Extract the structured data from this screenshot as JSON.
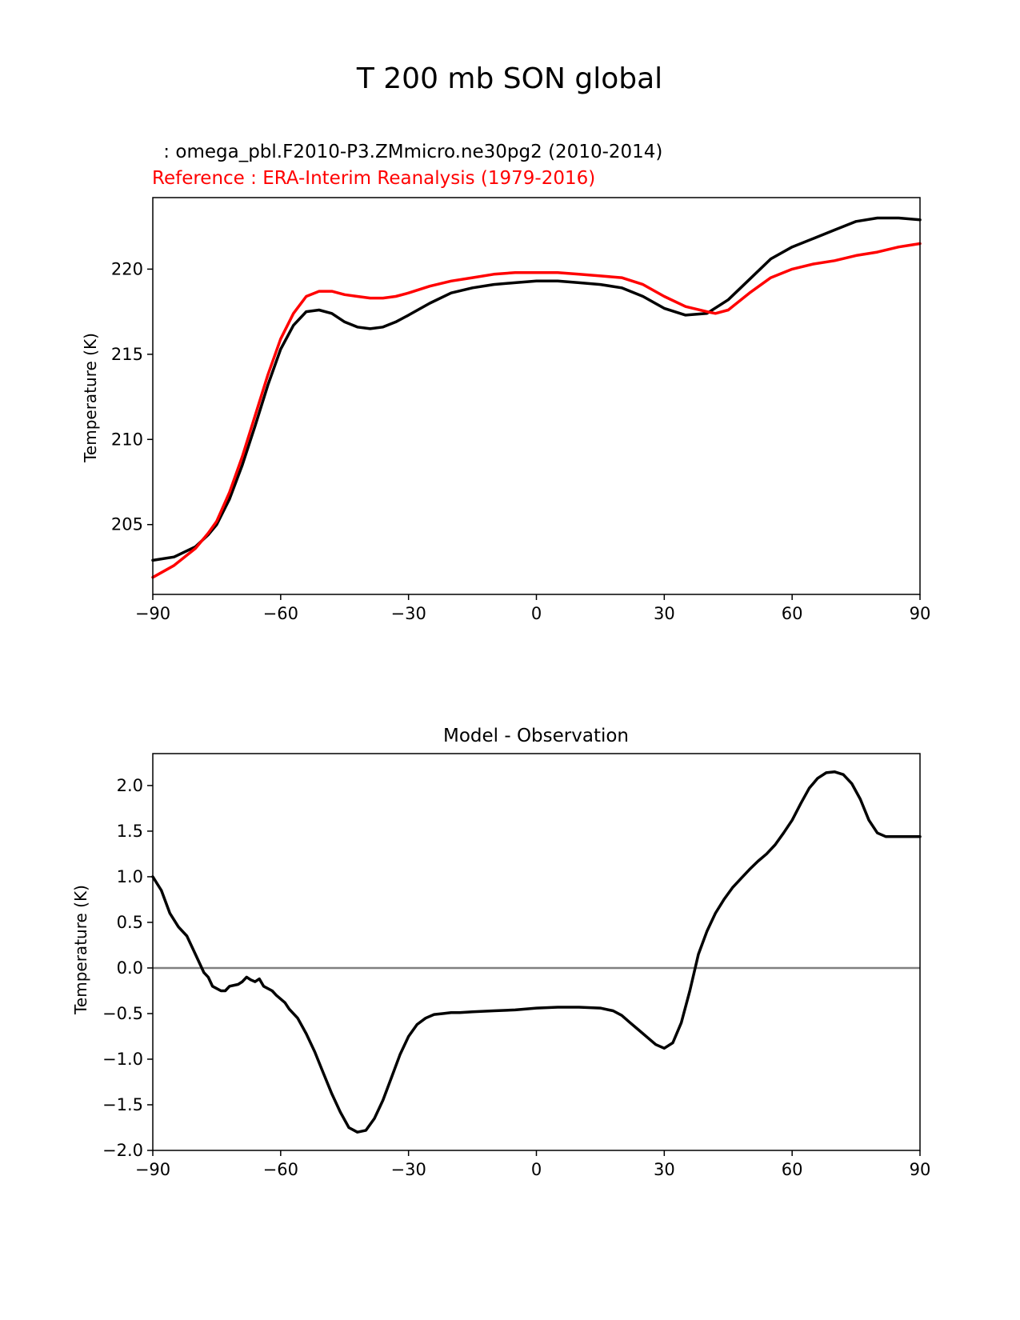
{
  "figure": {
    "title": "T 200 mb SON global"
  },
  "chart_data": [
    {
      "type": "line",
      "test_label": " : omega_pbl.F2010-P3.ZMmicro.ne30pg2 (2010-2014)",
      "reference_label": "Reference : ERA-Interim Reanalysis (1979-2016)",
      "title": "",
      "xlabel": "",
      "ylabel": "Temperature (K)",
      "xlim": [
        -90,
        90
      ],
      "ylim": [
        200.9,
        224.2
      ],
      "xticks": [
        -90,
        -60,
        -30,
        0,
        30,
        60,
        90
      ],
      "xtick_labels": [
        "−90",
        "−60",
        "−30",
        "0",
        "30",
        "60",
        "90"
      ],
      "yticks": [
        205,
        210,
        215,
        220
      ],
      "ytick_labels": [
        "205",
        "210",
        "215",
        "220"
      ],
      "grid": false,
      "series": [
        {
          "color": "#000000",
          "x": [
            -90,
            -85,
            -80,
            -77,
            -75,
            -72,
            -69,
            -66,
            -63,
            -60,
            -57,
            -54,
            -51,
            -48,
            -45,
            -42,
            -39,
            -36,
            -33,
            -30,
            -25,
            -20,
            -15,
            -10,
            -5,
            0,
            5,
            10,
            15,
            20,
            25,
            30,
            35,
            40,
            45,
            50,
            55,
            60,
            65,
            70,
            75,
            80,
            85,
            90
          ],
          "y": [
            202.9,
            203.1,
            203.7,
            204.4,
            205.0,
            206.5,
            208.5,
            210.8,
            213.2,
            215.3,
            216.7,
            217.5,
            217.6,
            217.4,
            216.9,
            216.6,
            216.5,
            216.6,
            216.9,
            217.3,
            218.0,
            218.6,
            218.9,
            219.1,
            219.2,
            219.3,
            219.3,
            219.2,
            219.1,
            218.9,
            218.4,
            217.7,
            217.3,
            217.4,
            218.2,
            219.4,
            220.6,
            221.3,
            221.8,
            222.3,
            222.8,
            223.0,
            223.0,
            222.9
          ]
        },
        {
          "color": "#ff0000",
          "x": [
            -90,
            -85,
            -80,
            -77,
            -75,
            -72,
            -69,
            -66,
            -63,
            -60,
            -57,
            -54,
            -51,
            -48,
            -45,
            -42,
            -39,
            -36,
            -33,
            -30,
            -25,
            -20,
            -15,
            -10,
            -5,
            0,
            5,
            10,
            15,
            20,
            25,
            30,
            35,
            40,
            42,
            45,
            50,
            55,
            60,
            65,
            70,
            75,
            80,
            85,
            90
          ],
          "y": [
            201.9,
            202.6,
            203.6,
            204.5,
            205.2,
            206.9,
            209.0,
            211.4,
            213.8,
            215.9,
            217.4,
            218.4,
            218.7,
            218.7,
            218.5,
            218.4,
            218.3,
            218.3,
            218.4,
            218.6,
            219.0,
            219.3,
            219.5,
            219.7,
            219.8,
            219.8,
            219.8,
            219.7,
            219.6,
            219.5,
            219.1,
            218.4,
            217.8,
            217.5,
            217.4,
            217.6,
            218.6,
            219.5,
            220.0,
            220.3,
            220.5,
            220.8,
            221.0,
            221.3,
            221.5
          ]
        }
      ]
    },
    {
      "type": "line",
      "title": "Model - Observation",
      "xlabel": "",
      "ylabel": "Temperature (K)",
      "xlim": [
        -90,
        90
      ],
      "ylim": [
        -2.0,
        2.35
      ],
      "xticks": [
        -90,
        -60,
        -30,
        0,
        30,
        60,
        90
      ],
      "xtick_labels": [
        "−90",
        "−60",
        "−30",
        "0",
        "30",
        "60",
        "90"
      ],
      "yticks": [
        -2.0,
        -1.5,
        -1.0,
        -0.5,
        0.0,
        0.5,
        1.0,
        1.5,
        2.0
      ],
      "ytick_labels": [
        "−2.0",
        "−1.5",
        "−1.0",
        "−0.5",
        "0.0",
        "0.5",
        "1.0",
        "1.5",
        "2.0"
      ],
      "grid": false,
      "zero_line": 0.0,
      "series": [
        {
          "color": "#000000",
          "x": [
            -90,
            -88,
            -86,
            -84,
            -82,
            -80,
            -78,
            -77,
            -76,
            -74,
            -73,
            -72,
            -70,
            -69,
            -68,
            -67,
            -66,
            -65,
            -64,
            -62,
            -61,
            -59,
            -58,
            -56,
            -54,
            -52,
            -50,
            -48,
            -46,
            -44,
            -42,
            -40,
            -38,
            -36,
            -34,
            -32,
            -30,
            -28,
            -26,
            -24,
            -22,
            -20,
            -18,
            -15,
            -10,
            -5,
            0,
            5,
            10,
            15,
            18,
            20,
            22,
            24,
            26,
            28,
            30,
            32,
            34,
            36,
            38,
            40,
            42,
            44,
            46,
            48,
            50,
            52,
            54,
            56,
            58,
            60,
            62,
            64,
            66,
            68,
            70,
            72,
            74,
            76,
            78,
            80,
            82,
            84,
            86,
            88,
            90
          ],
          "y": [
            1.0,
            0.85,
            0.6,
            0.45,
            0.35,
            0.15,
            -0.05,
            -0.1,
            -0.2,
            -0.25,
            -0.25,
            -0.2,
            -0.18,
            -0.15,
            -0.1,
            -0.13,
            -0.15,
            -0.12,
            -0.2,
            -0.25,
            -0.3,
            -0.38,
            -0.45,
            -0.55,
            -0.72,
            -0.92,
            -1.15,
            -1.38,
            -1.58,
            -1.75,
            -1.8,
            -1.78,
            -1.65,
            -1.45,
            -1.2,
            -0.95,
            -0.75,
            -0.62,
            -0.55,
            -0.51,
            -0.5,
            -0.49,
            -0.49,
            -0.48,
            -0.47,
            -0.46,
            -0.44,
            -0.43,
            -0.43,
            -0.44,
            -0.47,
            -0.52,
            -0.6,
            -0.68,
            -0.76,
            -0.84,
            -0.88,
            -0.82,
            -0.6,
            -0.25,
            0.15,
            0.4,
            0.6,
            0.75,
            0.88,
            0.98,
            1.08,
            1.17,
            1.25,
            1.35,
            1.48,
            1.62,
            1.8,
            1.97,
            2.08,
            2.14,
            2.15,
            2.12,
            2.02,
            1.85,
            1.62,
            1.48,
            1.44,
            1.44,
            1.44,
            1.44,
            1.44
          ]
        }
      ]
    }
  ]
}
